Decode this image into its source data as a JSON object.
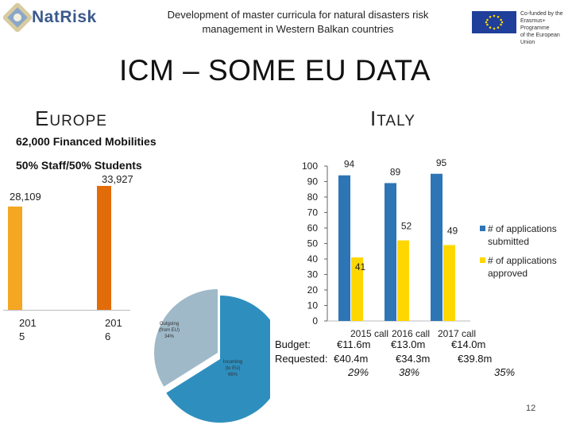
{
  "header": {
    "logo_text": "NatRisk",
    "title_line1": "Development of master curricula for natural disasters risk",
    "title_line2": "management in Western Balkan countries",
    "eu_line1": "Co-funded by the",
    "eu_line2": "Erasmus+ Programme",
    "eu_line3": "of the European Union"
  },
  "slide": {
    "title": "ICM – SOME EU DATA",
    "europe_first": "E",
    "europe_rest": "UROPE",
    "italy_first": "I",
    "italy_rest": "TALY",
    "financed_mobilities": "62,000 Financed Mobilities",
    "staff_students": "50% Staff/50% Students",
    "page_number": "12"
  },
  "europe_chart": {
    "bars": [
      {
        "value_label": "28,109",
        "value": 28109,
        "year_line1": "201",
        "year_line2": "5",
        "color": "#f5a623"
      },
      {
        "value_label": "33,927",
        "value": 33927,
        "year_line1": "201",
        "year_line2": "6",
        "color": "#e36c0a"
      }
    ]
  },
  "pie": {
    "outgoing_line1": "Outgoing",
    "outgoing_line2": "(from EU)",
    "outgoing_pct": "34%",
    "incoming_line1": "Incoming",
    "incoming_line2": "(to EU)",
    "incoming_pct": "66%",
    "colors": {
      "outgoing": "#9fb9c9",
      "incoming": "#2e8fbf"
    }
  },
  "chart_data": {
    "type": "bar",
    "title": "Italy",
    "categories": [
      "2015 call",
      "2016 call",
      "2017 call"
    ],
    "series": [
      {
        "name": "# of applications submitted",
        "values": [
          94,
          89,
          95
        ],
        "color": "#2e75b6"
      },
      {
        "name": "# of applications approved",
        "values": [
          41,
          52,
          49
        ],
        "color": "#ffd700"
      }
    ],
    "ylim": [
      0,
      100
    ],
    "yticks": [
      "100",
      "90",
      "80",
      "70",
      "60",
      "50",
      "40",
      "30",
      "20",
      "10",
      "0"
    ],
    "legend_placement": "right",
    "legend": {
      "submitted_line1": "# of applications",
      "submitted_line2": "submitted",
      "approved_line1": "# of applications",
      "approved_line2": "approved"
    }
  },
  "budget": {
    "budget_label": "Budget:",
    "requested_label": "Requested:",
    "budget_values": [
      "€11.6m",
      "€13.0m",
      "€14.0m"
    ],
    "requested_values": [
      "€40.4m",
      "€34.3m",
      "€39.8m"
    ],
    "percent_values": [
      "29%",
      "38%",
      "35%"
    ]
  }
}
